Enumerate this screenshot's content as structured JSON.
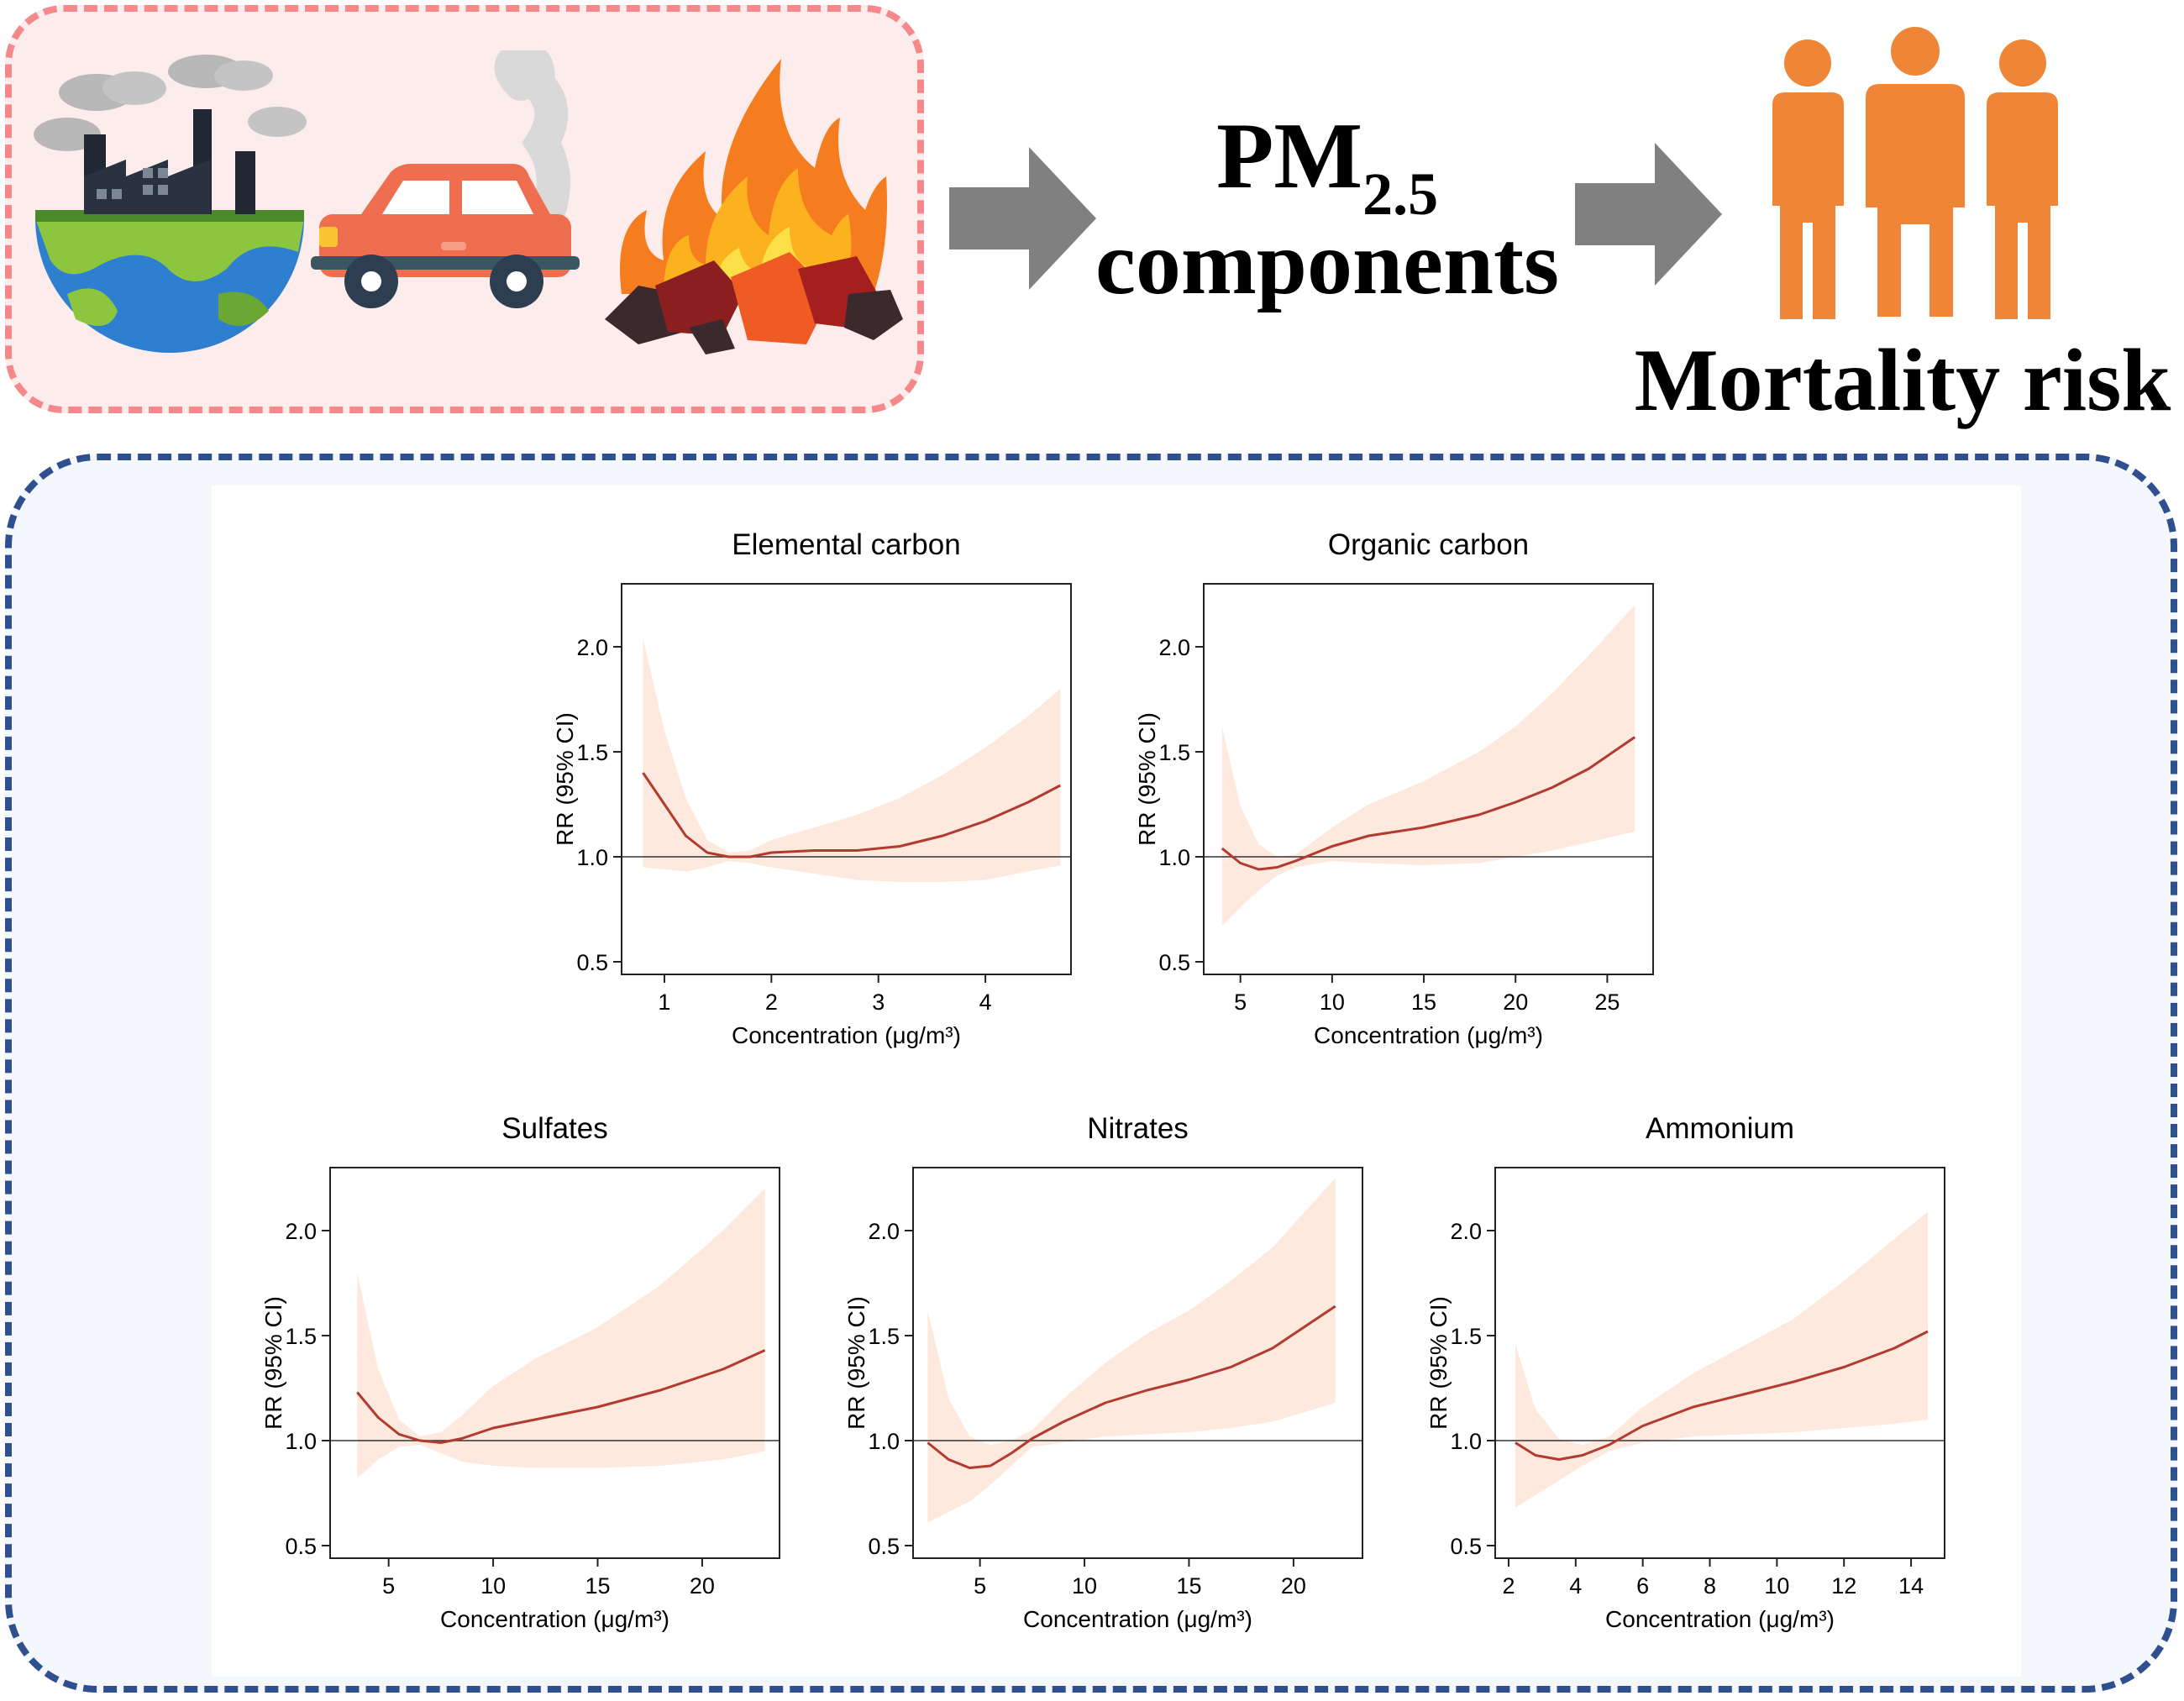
{
  "header": {
    "pm_text": "PM",
    "pm_subscript": "2.5",
    "pm_components": "components",
    "mortality_label": "Mortality risk"
  },
  "colors": {
    "curve": "#b23a30",
    "ci_band": "#fde9dd",
    "arrow": "#808080",
    "people": "#ef8536",
    "sources_border": "#f4888a",
    "plots_border": "#2f4f8f"
  },
  "chart_data": [
    {
      "type": "line",
      "title": "Elemental carbon",
      "xlabel": "Concentration (μg/m³)",
      "ylabel": "RR (95% CI)",
      "xlim": [
        0.6,
        4.8
      ],
      "ylim": [
        0.44,
        2.3
      ],
      "xticks": [
        1,
        2,
        3,
        4
      ],
      "yticks": [
        0.5,
        1.0,
        1.5,
        2.0
      ],
      "ytick_labels": [
        "0.5",
        "1.0",
        "1.5",
        "2.0"
      ],
      "reference_line": 1.0,
      "x": [
        0.8,
        1.0,
        1.2,
        1.4,
        1.6,
        1.8,
        2.0,
        2.4,
        2.8,
        3.2,
        3.6,
        4.0,
        4.4,
        4.7
      ],
      "y": [
        1.4,
        1.25,
        1.1,
        1.02,
        1.0,
        1.0,
        1.02,
        1.03,
        1.03,
        1.05,
        1.1,
        1.17,
        1.26,
        1.34
      ],
      "lower": [
        0.95,
        0.94,
        0.93,
        0.95,
        0.98,
        0.97,
        0.95,
        0.92,
        0.89,
        0.88,
        0.88,
        0.89,
        0.93,
        0.96
      ],
      "upper": [
        2.04,
        1.6,
        1.28,
        1.08,
        1.02,
        1.03,
        1.08,
        1.14,
        1.2,
        1.28,
        1.39,
        1.52,
        1.67,
        1.8
      ]
    },
    {
      "type": "line",
      "title": "Organic carbon",
      "xlabel": "Concentration (μg/m³)",
      "ylabel": "RR (95% CI)",
      "xlim": [
        3,
        27.5
      ],
      "ylim": [
        0.44,
        2.3
      ],
      "xticks": [
        5,
        10,
        15,
        20,
        25
      ],
      "yticks": [
        0.5,
        1.0,
        1.5,
        2.0
      ],
      "ytick_labels": [
        "0.5",
        "1.0",
        "1.5",
        "2.0"
      ],
      "reference_line": 1.0,
      "x": [
        4,
        5,
        6,
        7,
        8,
        10,
        12,
        15,
        18,
        20,
        22,
        24,
        26.5
      ],
      "y": [
        1.04,
        0.97,
        0.94,
        0.95,
        0.98,
        1.05,
        1.1,
        1.14,
        1.2,
        1.26,
        1.33,
        1.42,
        1.57
      ],
      "lower": [
        0.67,
        0.76,
        0.84,
        0.91,
        0.95,
        0.98,
        0.97,
        0.96,
        0.97,
        1.0,
        1.03,
        1.07,
        1.12
      ],
      "upper": [
        1.62,
        1.24,
        1.06,
        1.0,
        1.01,
        1.14,
        1.25,
        1.36,
        1.5,
        1.62,
        1.78,
        1.96,
        2.2
      ]
    },
    {
      "type": "line",
      "title": "Sulfates",
      "xlabel": "Concentration (μg/m³)",
      "ylabel": "RR (95% CI)",
      "xlim": [
        2.2,
        23.7
      ],
      "ylim": [
        0.44,
        2.3
      ],
      "xticks": [
        5,
        10,
        15,
        20
      ],
      "yticks": [
        0.5,
        1.0,
        1.5,
        2.0
      ],
      "ytick_labels": [
        "0.5",
        "1.0",
        "1.5",
        "2.0"
      ],
      "reference_line": 1.0,
      "x": [
        3.5,
        4.5,
        5.5,
        6.5,
        7.5,
        8.5,
        10,
        12,
        15,
        18,
        21,
        23
      ],
      "y": [
        1.23,
        1.11,
        1.03,
        1.0,
        0.99,
        1.01,
        1.06,
        1.1,
        1.16,
        1.24,
        1.34,
        1.43
      ],
      "lower": [
        0.82,
        0.91,
        0.97,
        0.98,
        0.94,
        0.9,
        0.88,
        0.87,
        0.87,
        0.88,
        0.91,
        0.95
      ],
      "upper": [
        1.8,
        1.34,
        1.1,
        1.02,
        1.04,
        1.12,
        1.26,
        1.39,
        1.54,
        1.74,
        2.0,
        2.2
      ]
    },
    {
      "type": "line",
      "title": "Nitrates",
      "xlabel": "Concentration (μg/m³)",
      "ylabel": "RR (95% CI)",
      "xlim": [
        1.8,
        23.3
      ],
      "ylim": [
        0.44,
        2.3
      ],
      "xticks": [
        5,
        10,
        15,
        20
      ],
      "ytick_labels": [
        "0.5",
        "1.0",
        "1.5",
        "2.0"
      ],
      "yticks": [
        0.5,
        1.0,
        1.5,
        2.0
      ],
      "reference_line": 1.0,
      "x": [
        2.5,
        3.5,
        4.5,
        5.5,
        6.5,
        7.5,
        9,
        11,
        13,
        15,
        17,
        19,
        22
      ],
      "y": [
        0.99,
        0.91,
        0.87,
        0.88,
        0.94,
        1.01,
        1.09,
        1.18,
        1.24,
        1.29,
        1.35,
        1.44,
        1.64
      ],
      "lower": [
        0.61,
        0.66,
        0.71,
        0.79,
        0.88,
        0.97,
        0.99,
        1.02,
        1.03,
        1.04,
        1.06,
        1.09,
        1.18
      ],
      "upper": [
        1.62,
        1.2,
        1.02,
        0.98,
        1.0,
        1.05,
        1.2,
        1.37,
        1.51,
        1.62,
        1.76,
        1.92,
        2.25
      ]
    },
    {
      "type": "line",
      "title": "Ammonium",
      "xlabel": "Concentration (μg/m³)",
      "ylabel": "RR (95% CI)",
      "xlim": [
        1.6,
        15
      ],
      "ylim": [
        0.44,
        2.3
      ],
      "xticks": [
        2,
        4,
        6,
        8,
        10,
        12,
        14
      ],
      "yticks": [
        0.5,
        1.0,
        1.5,
        2.0
      ],
      "ytick_labels": [
        "0.5",
        "1.0",
        "1.5",
        "2.0"
      ],
      "reference_line": 1.0,
      "x": [
        2.2,
        2.8,
        3.5,
        4.2,
        5.0,
        6.0,
        7.5,
        9,
        10.5,
        12,
        13.5,
        14.5
      ],
      "y": [
        0.99,
        0.93,
        0.91,
        0.93,
        0.98,
        1.07,
        1.16,
        1.22,
        1.28,
        1.35,
        1.44,
        1.52
      ],
      "lower": [
        0.68,
        0.74,
        0.81,
        0.88,
        0.95,
        0.99,
        1.02,
        1.03,
        1.04,
        1.06,
        1.08,
        1.1
      ],
      "upper": [
        1.46,
        1.15,
        1.01,
        0.98,
        1.02,
        1.16,
        1.32,
        1.45,
        1.58,
        1.76,
        1.96,
        2.09
      ]
    }
  ]
}
